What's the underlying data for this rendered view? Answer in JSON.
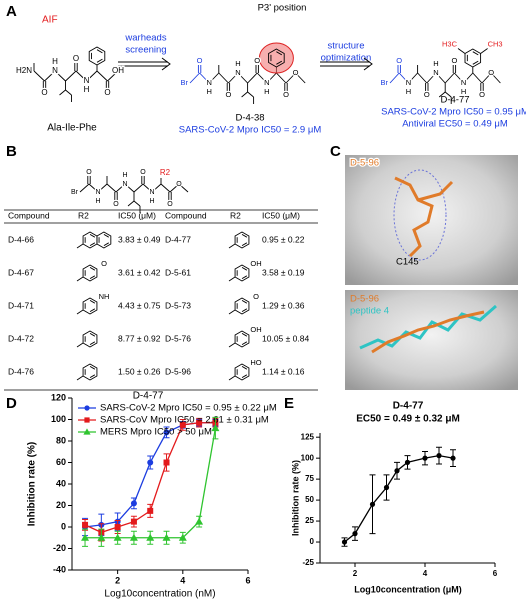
{
  "panel_a": {
    "letter": "A",
    "aif": "AIF",
    "start_name": "Ala-Ile-Phe",
    "start_atoms": [
      "H2N",
      "O",
      "N",
      "H",
      "O",
      "N",
      "H",
      "O",
      "OH"
    ],
    "arrow1": [
      "warheads",
      "screening"
    ],
    "p3_label": "P3' position",
    "hit_atoms": [
      "Br",
      "O",
      "N",
      "H",
      "O",
      "N",
      "H",
      "O",
      "N",
      "H",
      "O",
      "O"
    ],
    "hit_name": "D-4-38",
    "hit_activity": "SARS-CoV-2 Mpro IC50 = 2.9 μM",
    "arrow2": [
      "structure",
      "optimization"
    ],
    "lead_atoms": [
      "Br",
      "O",
      "N",
      "H",
      "O",
      "N",
      "H",
      "O",
      "N",
      "H",
      "O",
      "O"
    ],
    "lead_methyls": [
      "H3C",
      "CH3"
    ],
    "lead_name": "D-4-77",
    "lead_ic50": "SARS-CoV-2 Mpro IC50 = 0.95 μM",
    "lead_ec50": "Antiviral EC50 = 0.49 μM"
  },
  "panel_b": {
    "letter": "B",
    "core_atoms": [
      "Br",
      "O",
      "N",
      "H",
      "O",
      "N",
      "H",
      "O",
      "N",
      "H",
      "O",
      "O"
    ],
    "r_group": "R2",
    "headers": [
      "Compound",
      "R2",
      "IC50 (μM)",
      "Compound",
      "R2",
      "IC50 (μM)"
    ],
    "rows": [
      [
        {
          "compound": "D-4-66",
          "ic50": "3.83 ± 0.49"
        },
        {
          "compound": "D-4-77",
          "ic50": "0.95 ± 0.22"
        }
      ],
      [
        {
          "compound": "D-4-67",
          "ic50": "3.61 ± 0.42",
          "atom_label": "O"
        },
        {
          "compound": "D-5-61",
          "ic50": "3.58 ± 0.19",
          "atom_label": "OH"
        }
      ],
      [
        {
          "compound": "D-4-71",
          "ic50": "4.43 ± 0.75",
          "atom_label": "NH"
        },
        {
          "compound": "D-5-73",
          "ic50": "1.29 ± 0.36",
          "atom_label": "O"
        }
      ],
      [
        {
          "compound": "D-4-72",
          "ic50": "8.77 ± 0.92"
        },
        {
          "compound": "D-5-76",
          "ic50": "10.05 ± 0.84",
          "atom_label": "OH"
        }
      ],
      [
        {
          "compound": "D-4-76",
          "ic50": "1.50 ± 0.26"
        },
        {
          "compound": "D-5-96",
          "ic50": "1.14 ± 0.16",
          "atom_label": "HO"
        }
      ]
    ]
  },
  "panel_c": {
    "letter": "C",
    "top_ligand": "D-5-96",
    "residue": "C145",
    "bottom_ligand": "D-5-96",
    "bottom_reference": "peptide 4"
  },
  "chart_data": [
    {
      "panel": "D",
      "type": "line",
      "title": "D-4-77",
      "x_label": "Log10concentration (nM)",
      "y_label": "Inhibition rate (%)",
      "x": [
        1,
        1.5,
        2,
        2.5,
        3,
        3.5,
        4,
        4.5,
        5
      ],
      "xlim": [
        0.6,
        6
      ],
      "xticks": [
        2,
        4,
        6
      ],
      "ylim": [
        -40,
        120
      ],
      "yticks": [
        -40,
        -20,
        0,
        20,
        40,
        60,
        80,
        100,
        120
      ],
      "legend": "top-left",
      "series": [
        {
          "name": "SARS-CoV-2 Mpro IC50 = 0.95 ± 0.22 μM",
          "color": "#1c3de0",
          "marker": "circle",
          "values": [
            0,
            2,
            5,
            22,
            60,
            88,
            95,
            97,
            97
          ],
          "errors": [
            8,
            10,
            8,
            5,
            6,
            5,
            3,
            3,
            3
          ]
        },
        {
          "name": "SARS-CoV Mpro IC50 = 2.61 ± 0.31 μM",
          "color": "#e31a1c",
          "marker": "square",
          "values": [
            2,
            -5,
            0,
            5,
            15,
            60,
            95,
            97,
            97
          ],
          "errors": [
            5,
            8,
            6,
            5,
            6,
            8,
            5,
            4,
            4
          ]
        },
        {
          "name": "MERS Mpro IC50 > 50 μM",
          "color": "#2fc42f",
          "marker": "triangle",
          "values": [
            -10,
            -10,
            -10,
            -10,
            -10,
            -10,
            -10,
            5,
            92
          ],
          "errors": [
            8,
            8,
            6,
            6,
            6,
            6,
            5,
            5,
            10
          ]
        }
      ]
    },
    {
      "panel": "E",
      "type": "line",
      "title": "D-4-77",
      "subtitle": "EC50 = 0.49 ± 0.32 μM",
      "x_label": "Log10concentration (μM)",
      "y_label": "Inhibition rate (%)",
      "x": [
        1.7,
        2.0,
        2.5,
        2.9,
        3.2,
        3.5,
        4.0,
        4.4,
        4.8
      ],
      "xlim": [
        1,
        6
      ],
      "xticks": [
        2,
        4,
        6
      ],
      "ylim": [
        -25,
        130
      ],
      "yticks": [
        -25,
        0,
        25,
        50,
        75,
        100,
        125
      ],
      "series": [
        {
          "color": "#000000",
          "marker": "circle",
          "values": [
            0,
            10,
            45,
            65,
            85,
            95,
            100,
            103,
            100
          ],
          "errors": [
            5,
            8,
            35,
            15,
            10,
            8,
            8,
            10,
            10
          ]
        }
      ]
    }
  ]
}
